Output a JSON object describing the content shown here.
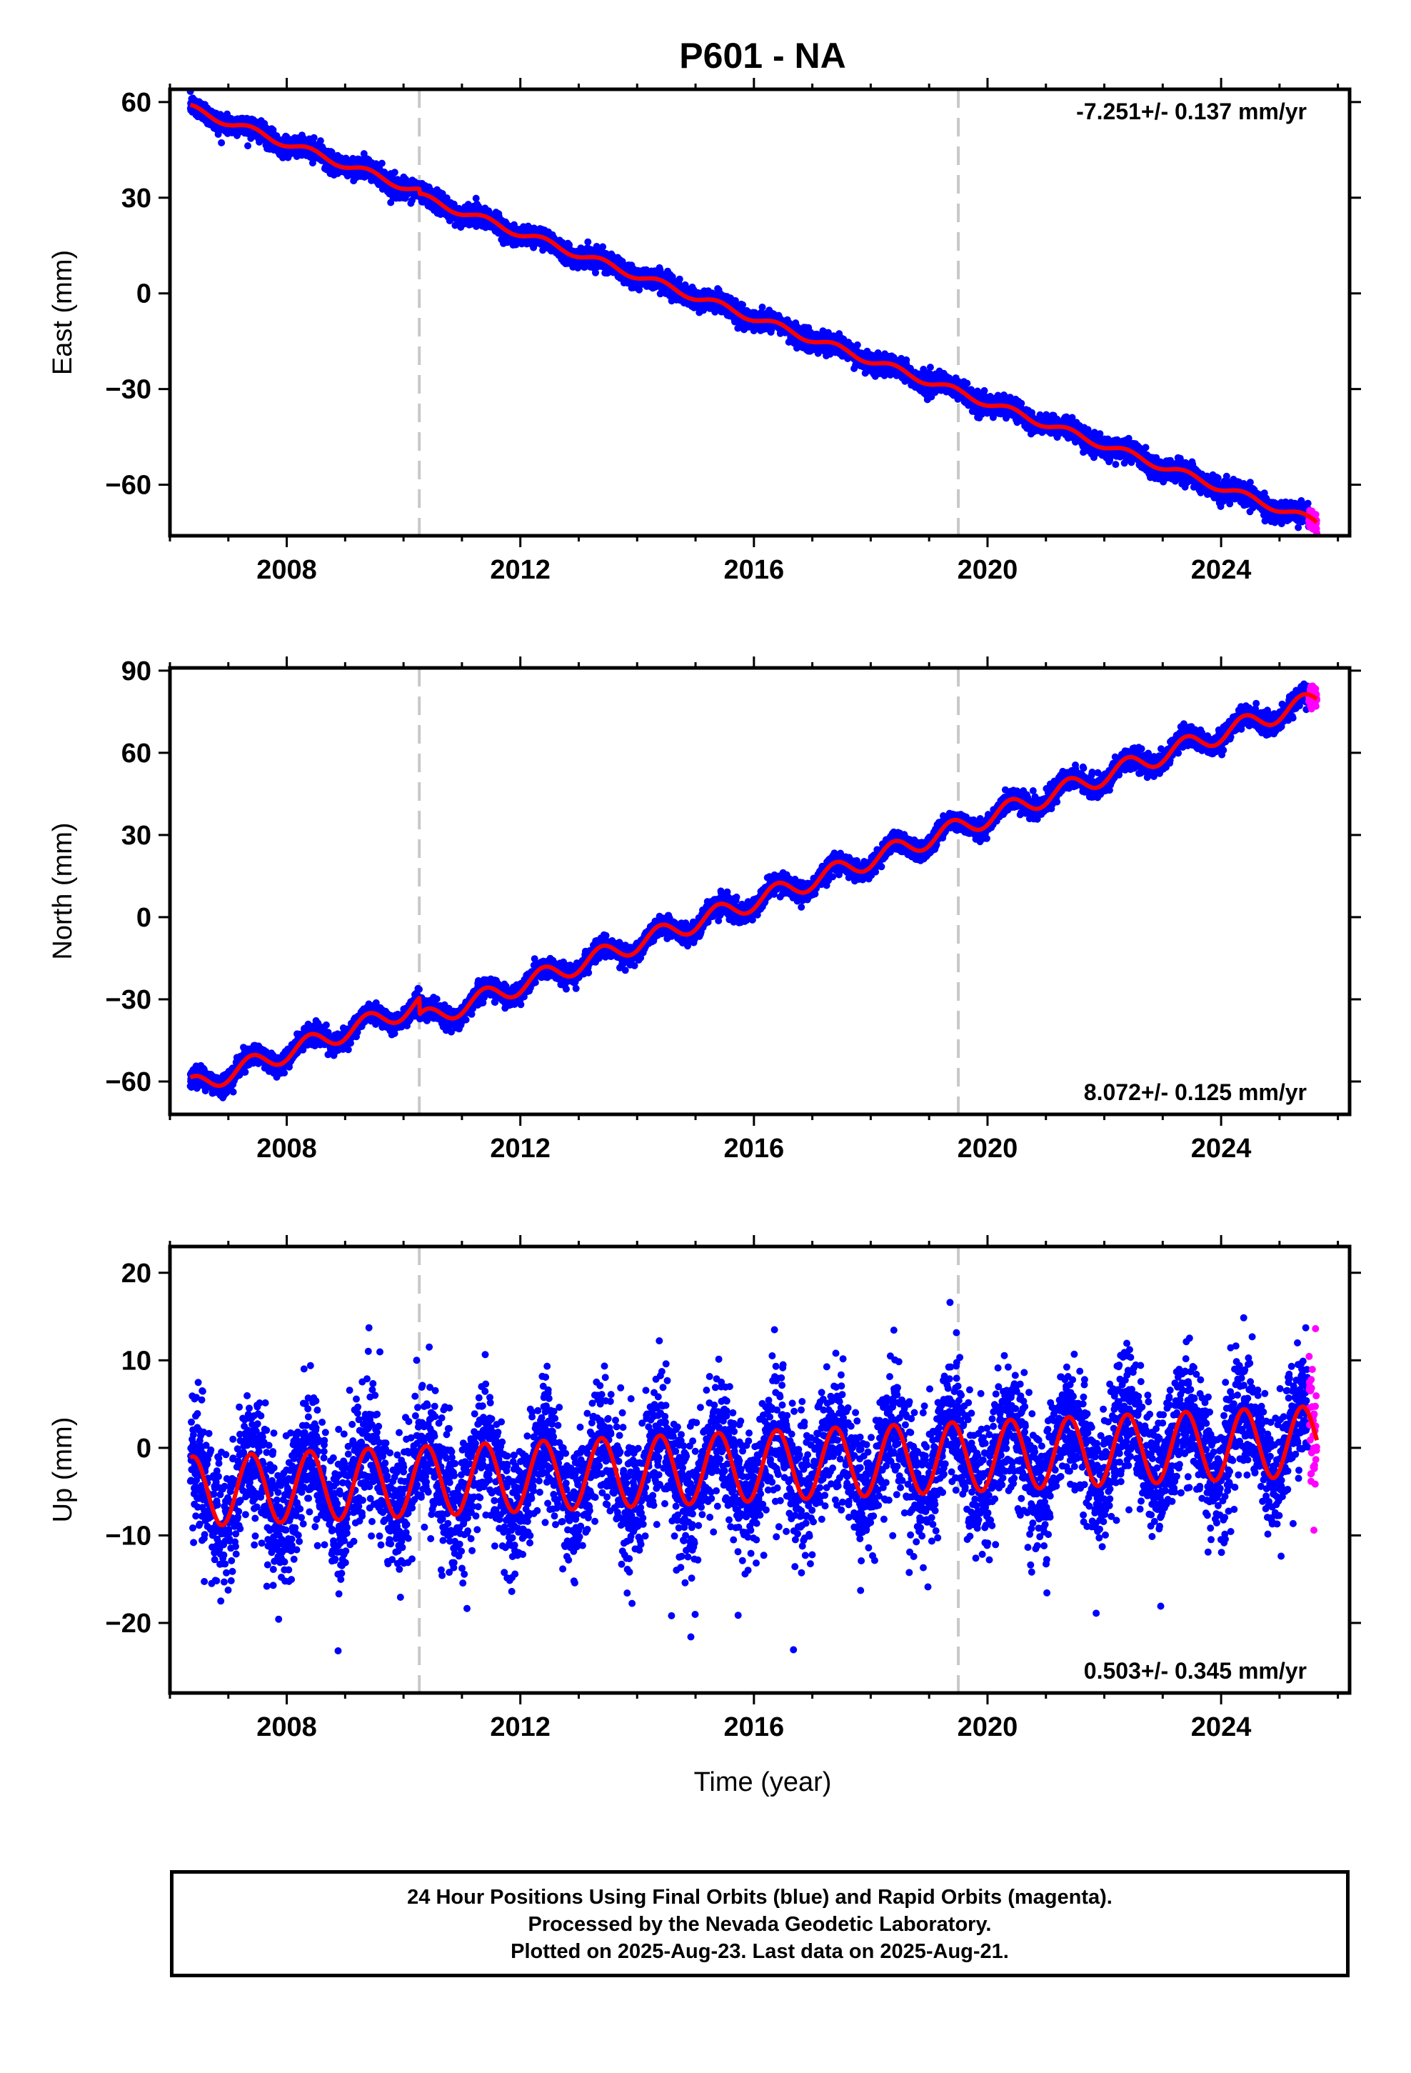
{
  "title": "P601 - NA",
  "xlabel": "Time (year)",
  "colors": {
    "final_orbits": "#0000ff",
    "rapid_orbits": "#ff00ff",
    "model_fit": "#ff0000",
    "equipment_change_line": "#c8c8c8"
  },
  "footer": {
    "line1": "24 Hour Positions Using Final Orbits (blue) and Rapid Orbits (magenta).",
    "line2": "Processed by the Nevada Geodetic Laboratory.",
    "line3": "Plotted on 2025-Aug-23. Last data on 2025-Aug-21."
  },
  "chart_data": [
    {
      "type": "scatter",
      "panel": "east",
      "ylabel": "East (mm)",
      "xlim": [
        2006.0,
        2026.2
      ],
      "ylim": [
        -76,
        64
      ],
      "xticks": [
        2008,
        2012,
        2016,
        2020,
        2024
      ],
      "yticks": [
        -60,
        -30,
        0,
        30,
        60
      ],
      "grid": false,
      "rate_text": "-7.251+/- 0.137 mm/yr",
      "rate_position": "top-right",
      "vertical_lines": [
        2010.27,
        2019.5
      ],
      "data_start": 2006.35,
      "data_end": 2025.64,
      "rapid_orbits_start": 2025.5,
      "model": {
        "value_at_start": 58.0,
        "rate_mm_per_yr": -6.65,
        "annual_amplitude": 1.2,
        "offsets": [
          {
            "at": 2010.27,
            "value": -1.5
          }
        ],
        "scatter_mm": 1.5
      },
      "series": [
        {
          "name": "Final Orbits (blue)",
          "color": "#0000ff"
        },
        {
          "name": "Rapid Orbits (magenta)",
          "color": "#ff00ff"
        }
      ]
    },
    {
      "type": "scatter",
      "panel": "north",
      "ylabel": "North (mm)",
      "xlim": [
        2006.0,
        2026.2
      ],
      "ylim": [
        -72,
        91
      ],
      "xticks": [
        2008,
        2012,
        2016,
        2020,
        2024
      ],
      "yticks": [
        -60,
        -30,
        0,
        30,
        60,
        90
      ],
      "grid": false,
      "rate_text": "8.072+/- 0.125 mm/yr",
      "rate_position": "bottom-right",
      "vertical_lines": [
        2010.27,
        2019.5
      ],
      "data_start": 2006.35,
      "data_end": 2025.64,
      "rapid_orbits_start": 2025.5,
      "model": {
        "value_at_start": -62.0,
        "rate_mm_per_yr": 7.65,
        "annual_amplitude": 3.5,
        "offsets": [
          {
            "at": 2010.27,
            "value": -6.0
          }
        ],
        "scatter_mm": 1.7
      },
      "series": [
        {
          "name": "Final Orbits (blue)",
          "color": "#0000ff"
        },
        {
          "name": "Rapid Orbits (magenta)",
          "color": "#ff00ff"
        }
      ]
    },
    {
      "type": "scatter",
      "panel": "up",
      "ylabel": "Up (mm)",
      "xlim": [
        2006.0,
        2026.2
      ],
      "ylim": [
        -28,
        23
      ],
      "xticks": [
        2008,
        2012,
        2016,
        2020,
        2024
      ],
      "yticks": [
        -20,
        -10,
        0,
        10,
        20
      ],
      "grid": false,
      "rate_text": "0.503+/- 0.345 mm/yr",
      "rate_position": "bottom-right",
      "vertical_lines": [
        2010.27,
        2019.5
      ],
      "data_start": 2006.35,
      "data_end": 2025.64,
      "rapid_orbits_start": 2025.5,
      "model": {
        "value_at_start": -5.0,
        "rate_mm_per_yr": 0.3,
        "annual_amplitude": 4.0,
        "offsets": [],
        "scatter_mm": 3.6
      },
      "series": [
        {
          "name": "Final Orbits (blue)",
          "color": "#0000ff"
        },
        {
          "name": "Rapid Orbits (magenta)",
          "color": "#ff00ff"
        }
      ]
    }
  ]
}
